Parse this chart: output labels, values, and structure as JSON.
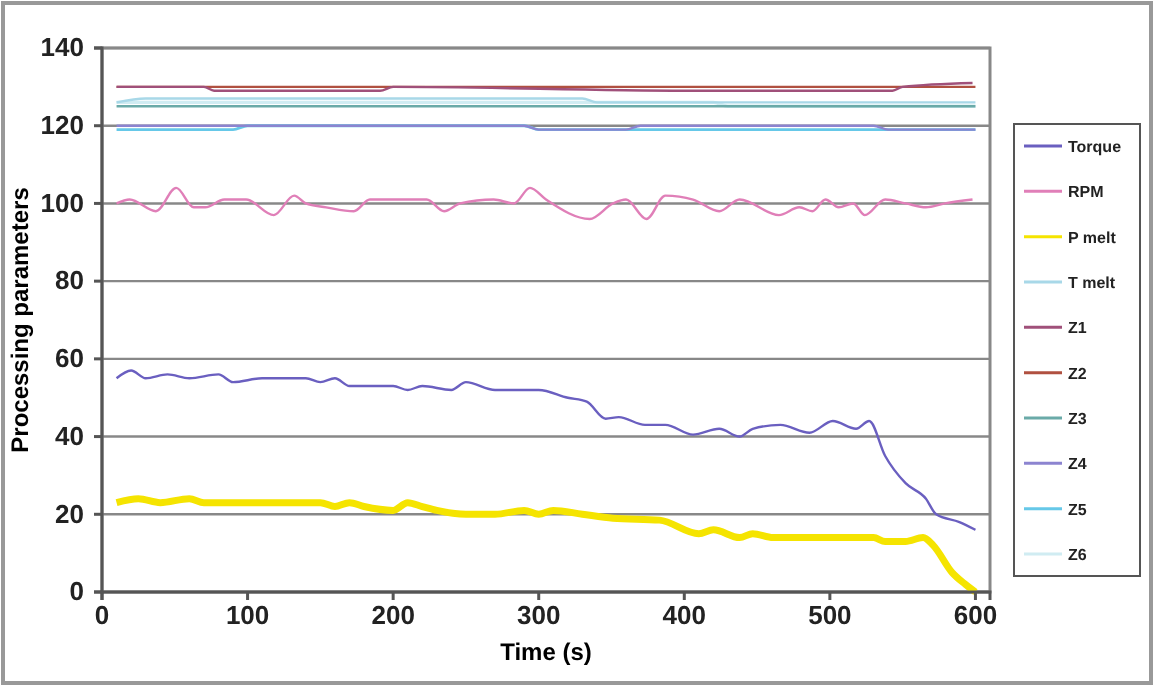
{
  "chart_data": {
    "type": "line",
    "xlabel": "Time (s)",
    "ylabel": "Processing parameters",
    "xlim": [
      0,
      610
    ],
    "xticks": [
      0,
      100,
      200,
      300,
      400,
      500,
      600
    ],
    "ylim": [
      0,
      140
    ],
    "yticks": [
      0,
      20,
      40,
      60,
      80,
      100,
      120,
      140
    ],
    "grid": "y",
    "legend": "right",
    "line_style": "solid",
    "marker": "none",
    "series": [
      {
        "name": "Torque",
        "color": "#6a5fc0",
        "x": [
          10,
          20,
          30,
          45,
          60,
          80,
          90,
          110,
          140,
          150,
          160,
          170,
          200,
          210,
          220,
          240,
          250,
          270,
          300,
          320,
          333,
          346,
          355,
          373,
          387,
          406,
          424,
          438,
          447,
          466,
          486,
          502,
          518,
          527,
          538,
          552,
          566,
          573,
          589,
          600
        ],
        "values": [
          55,
          57,
          55,
          56,
          55,
          56,
          54,
          55,
          55,
          54,
          55,
          53,
          53,
          52,
          53,
          52,
          54,
          52,
          52,
          50,
          49,
          44.6,
          45,
          43,
          43,
          40.5,
          42,
          40,
          42,
          43,
          41,
          44,
          42,
          44,
          35,
          28,
          24,
          20,
          18,
          16
        ]
      },
      {
        "name": "RPM",
        "color": "#e07fb8",
        "x": [
          10,
          19,
          37,
          51,
          63,
          71,
          84,
          99,
          118,
          132,
          140,
          154,
          173,
          184,
          223,
          235,
          246,
          269,
          283,
          294,
          305,
          335,
          351,
          360,
          374,
          387,
          406,
          424,
          438,
          465,
          479,
          488,
          497,
          506,
          516,
          524,
          538,
          552,
          566,
          579,
          598
        ],
        "values": [
          100,
          101,
          98,
          104,
          99,
          99,
          101,
          101,
          97,
          102,
          100,
          99,
          98,
          101,
          101,
          98,
          100,
          101,
          100,
          104,
          101,
          96,
          100,
          101,
          96,
          102,
          101,
          98,
          101,
          97,
          99,
          98,
          101,
          99,
          100,
          97,
          101,
          100,
          99,
          100,
          101
        ]
      },
      {
        "name": "P melt",
        "color": "#f5e400",
        "x": [
          10,
          25,
          40,
          60,
          70,
          150,
          160,
          170,
          180,
          200,
          210,
          220,
          230,
          250,
          270,
          290,
          300,
          310,
          330,
          351,
          383,
          410,
          420,
          438,
          447,
          461,
          530,
          538,
          552,
          564,
          571,
          584,
          593,
          600
        ],
        "values": [
          23,
          24,
          23,
          24,
          23,
          23,
          22,
          23,
          22,
          21,
          23,
          22,
          21,
          20,
          20,
          21,
          20,
          21,
          20,
          19,
          18.5,
          15,
          16,
          14,
          15,
          14,
          14,
          13,
          13,
          14,
          12,
          5,
          2,
          0
        ]
      },
      {
        "name": "T melt",
        "color": "#a8d8e8",
        "x": [
          10,
          30,
          330,
          340,
          600
        ],
        "values": [
          126,
          127,
          127,
          126,
          126
        ]
      },
      {
        "name": "Z1",
        "color": "#a0507a",
        "x": [
          10,
          70,
          77,
          191,
          200,
          401,
          543,
          550,
          598
        ],
        "values": [
          130,
          130,
          129,
          129,
          130,
          129,
          129,
          130,
          131
        ]
      },
      {
        "name": "Z2",
        "color": "#b05040",
        "x": [
          10,
          600
        ],
        "values": [
          130,
          130
        ]
      },
      {
        "name": "Z3",
        "color": "#6aaaa8",
        "x": [
          10,
          600
        ],
        "values": [
          125,
          125
        ]
      },
      {
        "name": "Z4",
        "color": "#8c84d0",
        "x": [
          10,
          290,
          300,
          360,
          370,
          530,
          540,
          600
        ],
        "values": [
          120,
          120,
          119,
          119,
          120,
          120,
          119,
          119
        ]
      },
      {
        "name": "Z5",
        "color": "#66c8e8",
        "x": [
          10,
          90,
          100,
          290,
          300,
          600
        ],
        "values": [
          119,
          119,
          120,
          120,
          119,
          119
        ]
      },
      {
        "name": "Z6",
        "color": "#d0ecf2",
        "x": [
          10,
          420,
          430,
          600
        ],
        "values": [
          126,
          126,
          125,
          125
        ]
      }
    ]
  }
}
